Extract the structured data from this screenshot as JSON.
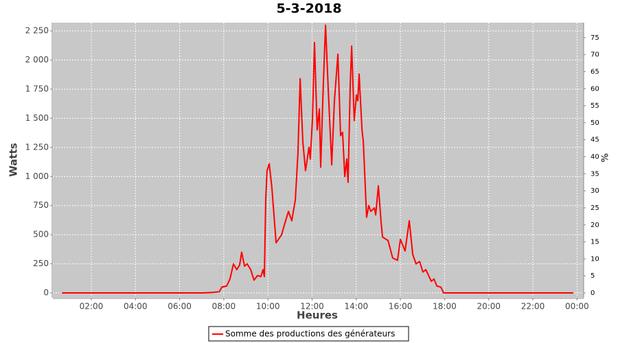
{
  "chart_data": {
    "type": "line",
    "title": "5-3-2018",
    "x_label": "Heures",
    "y_label": "Watts",
    "y2_label": "%",
    "x": [
      0.67,
      2,
      4,
      6,
      7.07,
      7.5,
      7.8,
      7.91,
      8.13,
      8.28,
      8.44,
      8.59,
      8.72,
      8.81,
      8.94,
      9.06,
      9.22,
      9.37,
      9.53,
      9.68,
      9.78,
      9.84,
      9.9,
      9.96,
      10.06,
      10.18,
      10.37,
      10.62,
      10.77,
      10.93,
      11.08,
      11.24,
      11.36,
      11.46,
      11.58,
      11.7,
      11.86,
      11.92,
      12.02,
      12.11,
      12.23,
      12.33,
      12.39,
      12.51,
      12.61,
      12.73,
      12.89,
      13.01,
      13.17,
      13.29,
      13.38,
      13.48,
      13.57,
      13.63,
      13.73,
      13.79,
      13.91,
      14.01,
      14.07,
      14.13,
      14.26,
      14.32,
      14.47,
      14.57,
      14.66,
      14.82,
      14.88,
      15.0,
      15.13,
      15.19,
      15.44,
      15.65,
      15.87,
      16.0,
      16.21,
      16.4,
      16.56,
      16.71,
      16.87,
      17.02,
      17.15,
      17.4,
      17.52,
      17.65,
      17.83,
      17.96,
      19,
      21,
      23,
      23.83
    ],
    "series": [
      {
        "name": "Somme des productions des  générateurs",
        "color": "#ff0000",
        "values": [
          0,
          0,
          0,
          0,
          0,
          5,
          10,
          50,
          60,
          120,
          250,
          200,
          240,
          350,
          230,
          250,
          200,
          110,
          150,
          140,
          200,
          140,
          800,
          1050,
          1110,
          900,
          430,
          500,
          600,
          700,
          620,
          800,
          1200,
          1840,
          1300,
          1050,
          1250,
          1150,
          1500,
          2150,
          1400,
          1580,
          1080,
          1800,
          2300,
          1750,
          1100,
          1650,
          2050,
          1350,
          1380,
          1000,
          1150,
          950,
          1800,
          2120,
          1480,
          1700,
          1650,
          1880,
          1400,
          1300,
          650,
          750,
          700,
          730,
          670,
          920,
          600,
          480,
          450,
          300,
          280,
          460,
          360,
          620,
          330,
          250,
          270,
          180,
          200,
          100,
          120,
          60,
          50,
          0,
          0,
          0,
          0,
          0
        ]
      }
    ],
    "xlim": [
      0.26,
      24.3
    ],
    "xticks": [
      {
        "value": 2,
        "label": "02:00"
      },
      {
        "value": 4,
        "label": "04:00"
      },
      {
        "value": 6,
        "label": "06:00"
      },
      {
        "value": 8,
        "label": "08:00"
      },
      {
        "value": 10,
        "label": "10:00"
      },
      {
        "value": 12,
        "label": "12:00"
      },
      {
        "value": 14,
        "label": "14:00"
      },
      {
        "value": 16,
        "label": "16:00"
      },
      {
        "value": 18,
        "label": "18:00"
      },
      {
        "value": 20,
        "label": "20:00"
      },
      {
        "value": 22,
        "label": "22:00"
      },
      {
        "value": 24,
        "label": "00:00"
      }
    ],
    "ylim": [
      -41,
      2321
    ],
    "yticks": [
      0,
      250,
      500,
      750,
      {
        "value": 1000,
        "label": "1 000"
      },
      {
        "value": 1250,
        "label": "1 250"
      },
      {
        "value": 1500,
        "label": "1 500"
      },
      {
        "value": 1750,
        "label": "1 750"
      },
      {
        "value": 2000,
        "label": "2 000"
      },
      {
        "value": 2250,
        "label": "2 250"
      }
    ],
    "y2lim": [
      -1.4,
      79.4
    ],
    "y2ticks": [
      0,
      5,
      10,
      15,
      20,
      25,
      30,
      35,
      40,
      45,
      50,
      55,
      60,
      65,
      70,
      75
    ],
    "grid": true
  }
}
